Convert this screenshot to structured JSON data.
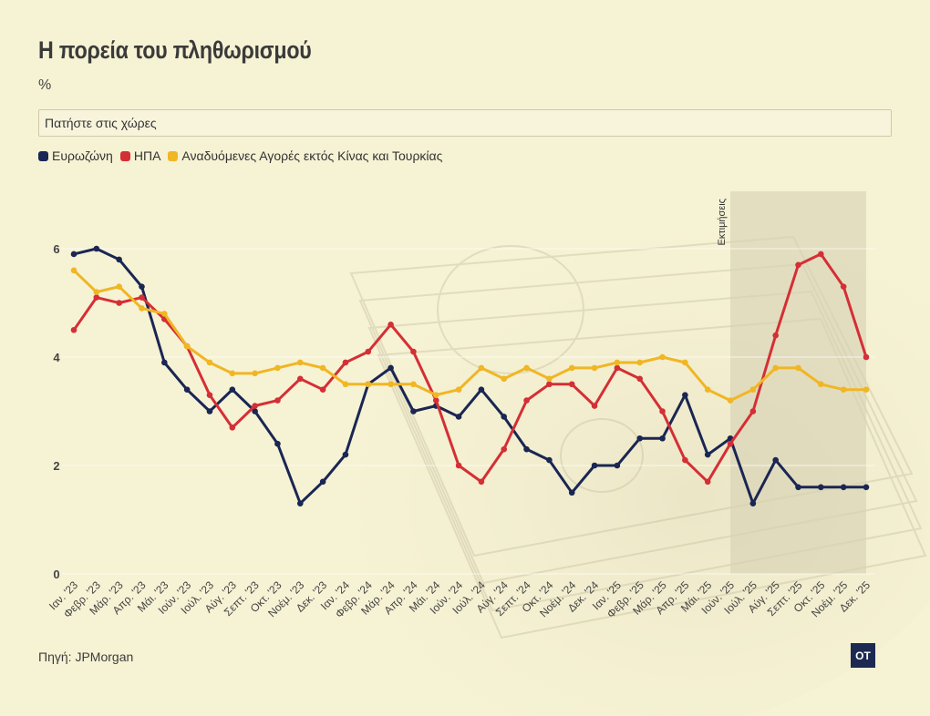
{
  "title": "Η πορεία του πληθωρισμού",
  "unit": "%",
  "search": {
    "placeholder": "Πατήστε στις χώρες"
  },
  "source": "Πηγή: JPMorgan",
  "logo": "OT",
  "chart_data": {
    "type": "line",
    "title": "Η πορεία του πληθωρισμού",
    "ylabel": "%",
    "ylim": [
      0,
      7
    ],
    "yticks": [
      0,
      2,
      4,
      6
    ],
    "grid": true,
    "legend_position": "top-left",
    "estimate_label": "Εκτιμήσεις",
    "estimate_start_index": 29,
    "categories": [
      "Ιαν. '23",
      "Φεβρ. '23",
      "Μάρ. '23",
      "Απρ. '23",
      "Μάι. '23",
      "Ιούν. '23",
      "Ιούλ. '23",
      "Αύγ. '23",
      "Σεπτ. '23",
      "Οκτ. '23",
      "Νοέμ. '23",
      "Δεκ. '23",
      "Ιαν. '24",
      "Φεβρ. '24",
      "Μάρ. '24",
      "Απρ. '24",
      "Μάι. '24",
      "Ιούν. '24",
      "Ιούλ. '24",
      "Αύγ. '24",
      "Σεπτ. '24",
      "Οκτ. '24",
      "Νοέμ. '24",
      "Δεκ. '24",
      "Ιαν. '25",
      "Φεβρ. '25",
      "Μάρ. '25",
      "Απρ. '25",
      "Μάι. '25",
      "Ιούν. '25",
      "Ιούλ. '25",
      "Αύγ. '25",
      "Σεπτ. '25",
      "Οκτ. '25",
      "Νοέμ. '25",
      "Δεκ. '25"
    ],
    "series": [
      {
        "name": "Ευρωζώνη",
        "color": "#1a2653",
        "values": [
          5.9,
          6.0,
          5.8,
          5.3,
          3.9,
          3.4,
          3.0,
          3.4,
          3.0,
          2.4,
          1.3,
          1.7,
          2.2,
          3.5,
          3.8,
          3.0,
          3.1,
          2.9,
          3.4,
          2.9,
          2.3,
          2.1,
          1.5,
          2.0,
          2.0,
          2.5,
          2.5,
          3.3,
          2.2,
          2.5,
          1.3,
          2.1,
          1.6,
          1.6,
          1.6,
          1.6
        ]
      },
      {
        "name": "ΗΠΑ",
        "color": "#d42f35",
        "values": [
          4.5,
          5.1,
          5.0,
          5.1,
          4.7,
          4.2,
          3.3,
          2.7,
          3.1,
          3.2,
          3.6,
          3.4,
          3.9,
          4.1,
          4.6,
          4.1,
          3.2,
          2.0,
          1.7,
          2.3,
          3.2,
          3.5,
          3.5,
          3.1,
          3.8,
          3.6,
          3.0,
          2.1,
          1.7,
          2.4,
          3.0,
          4.4,
          5.7,
          5.9,
          5.3,
          4.0
        ]
      },
      {
        "name": "Αναδυόμενες Αγορές εκτός Κίνας και Τουρκίας",
        "color": "#f0b623",
        "values": [
          5.6,
          5.2,
          5.3,
          4.9,
          4.8,
          4.2,
          3.9,
          3.7,
          3.7,
          3.8,
          3.9,
          3.8,
          3.5,
          3.5,
          3.5,
          3.5,
          3.3,
          3.4,
          3.8,
          3.6,
          3.8,
          3.6,
          3.8,
          3.8,
          3.9,
          3.9,
          4.0,
          3.9,
          3.4,
          3.2,
          3.4,
          3.8,
          3.8,
          3.5,
          3.4,
          3.4
        ]
      }
    ]
  }
}
